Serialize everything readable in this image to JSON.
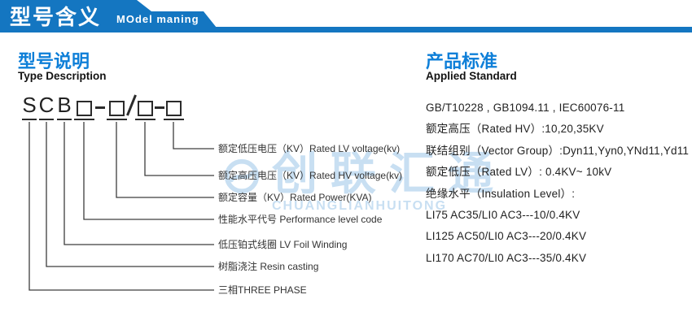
{
  "header": {
    "title_cn": "型号含义",
    "title_en": "MOdel maning"
  },
  "type_description": {
    "title_cn": "型号说明",
    "title_en": "Type Description",
    "code_tokens": [
      {
        "type": "letter",
        "value": "S"
      },
      {
        "type": "letter",
        "value": "C"
      },
      {
        "type": "letter",
        "value": "B"
      },
      {
        "type": "box",
        "value": "□"
      },
      {
        "type": "dash",
        "value": "-"
      },
      {
        "type": "box",
        "value": "□"
      },
      {
        "type": "slash",
        "value": "/"
      },
      {
        "type": "box",
        "value": "□"
      },
      {
        "type": "dash",
        "value": "-"
      },
      {
        "type": "box",
        "value": "□"
      }
    ],
    "labels": [
      "额定低压电压（KV）Rated LV voltage(kv)",
      "额定高压电压（KV）Rated HV voltage(kv)",
      "额定容量（KV）Rated Power(KVA)",
      "性能水平代号 Performance level code",
      "低压铂式线圈 LV Foil Winding",
      "树脂浇注 Resin casting",
      "三相THREE PHASE"
    ]
  },
  "applied_standard": {
    "title_cn": "产品标准",
    "title_en": "Applied Standard",
    "lines": [
      "GB/T10228 , GB1094.11 , IEC60076-11",
      "额定高压（Rated HV）:10,20,35KV",
      "联结组别（Vector Group）:Dyn11,Yyn0,YNd11,Yd11",
      "额定低压（Rated LV）: 0.4KV~ 10kV",
      "绝缘水平（Insulation Level）:",
      "LI75 AC35/LI0 AC3---10/0.4KV",
      "LI125 AC50/LI0 AC3---20/0.4KV",
      "LI170 AC70/LI0 AC3---35/0.4KV"
    ]
  },
  "watermark": {
    "logo": "ring-logo",
    "text_cn": "创联汇通",
    "text_en": "CHUANGLIANHUITONG"
  },
  "colors": {
    "banner_blue": "#1476c1",
    "heading_blue": "#0e7fd8",
    "watermark_blue": "#9cc6e9",
    "line_dark": "#3d3d3d",
    "text_dark": "#222222"
  }
}
